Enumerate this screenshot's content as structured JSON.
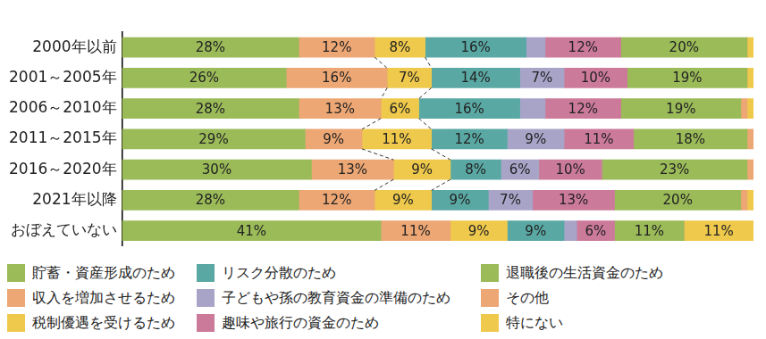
{
  "chart_data": {
    "type": "bar",
    "orientation": "horizontal",
    "stacked": true,
    "data_labels": true,
    "tick_labels": "y",
    "grid": false,
    "legend": "bottom",
    "xlim": [
      0,
      100
    ],
    "categories": [
      "2000年以前",
      "2001～2005年",
      "2006～2010年",
      "2011～2015年",
      "2016～2020年",
      "2021年以降",
      "おぼえていない"
    ],
    "series": [
      {
        "name": "貯蓄・資産形成のため",
        "color": "#9bbb59",
        "values": [
          28,
          26,
          28,
          29,
          30,
          28,
          41
        ],
        "value_labels": [
          "28%",
          "26%",
          "28%",
          "29%",
          "30%",
          "28%",
          "41%"
        ]
      },
      {
        "name": "収入を増加させるため",
        "color": "#eda774",
        "values": [
          12,
          16,
          13,
          9,
          13,
          12,
          11
        ],
        "value_labels": [
          "12%",
          "16%",
          "13%",
          "9%",
          "13%",
          "12%",
          "11%"
        ]
      },
      {
        "name": "税制優遇を受けるため",
        "color": "#efc94c",
        "values": [
          8,
          7,
          6,
          11,
          9,
          9,
          9
        ],
        "value_labels": [
          "8%",
          "7%",
          "6%",
          "11%",
          "9%",
          "9%",
          "9%"
        ]
      },
      {
        "name": "リスク分散のため",
        "color": "#5aa8a3",
        "values": [
          16,
          14,
          16,
          12,
          8,
          9,
          9
        ],
        "value_labels": [
          "16%",
          "14%",
          "16%",
          "12%",
          "8%",
          "9%",
          "9%"
        ]
      },
      {
        "name": "子どもや孫の教育資金の準備のため",
        "color": "#a8a4c8",
        "values": [
          3,
          7,
          4,
          9,
          6,
          7,
          2
        ],
        "value_labels": [
          null,
          "7%",
          null,
          "9%",
          "6%",
          "7%",
          null
        ]
      },
      {
        "name": "趣味や旅行の資金のため",
        "color": "#cc7a99",
        "values": [
          12,
          10,
          12,
          11,
          10,
          13,
          6
        ],
        "value_labels": [
          "12%",
          "10%",
          "12%",
          "11%",
          "10%",
          "13%",
          "6%"
        ]
      },
      {
        "name": "退職後の生活資金のため",
        "color": "#9bbb59",
        "values": [
          20,
          19,
          19,
          18,
          23,
          20,
          11
        ],
        "value_labels": [
          "20%",
          "19%",
          "19%",
          "18%",
          "23%",
          "20%",
          "11%"
        ]
      },
      {
        "name": "その他",
        "color": "#eda774",
        "values": [
          0,
          0,
          1,
          1,
          1,
          1,
          0
        ],
        "value_labels": [
          null,
          null,
          null,
          null,
          null,
          null,
          null
        ]
      },
      {
        "name": "特にない",
        "color": "#efc94c",
        "values": [
          1,
          1,
          1,
          0,
          0,
          1,
          11
        ],
        "value_labels": [
          null,
          null,
          null,
          null,
          null,
          null,
          "11%"
        ]
      }
    ]
  }
}
